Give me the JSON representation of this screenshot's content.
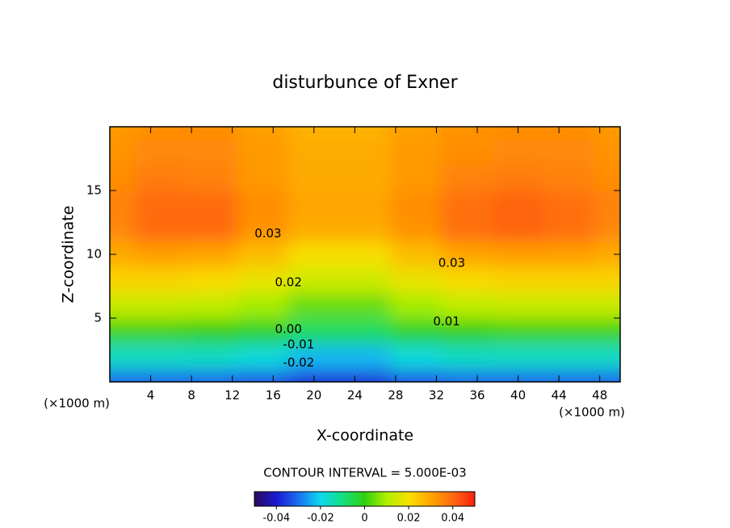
{
  "chart_data": {
    "type": "contour",
    "title": "disturbunce of Exner",
    "x_label": "X-coordinate",
    "y_label": "Z-coordinate",
    "x_unit_left": "(×1000 m)",
    "x_unit_right": "(×1000 m)",
    "contour_interval_text": "CONTOUR INTERVAL = 5.000E-03",
    "xlim": [
      0,
      50
    ],
    "ylim": [
      0,
      20
    ],
    "xticks": [
      4,
      8,
      12,
      16,
      20,
      24,
      28,
      32,
      36,
      40,
      44,
      48
    ],
    "yticks": [
      5,
      10,
      15
    ],
    "x": [
      0,
      5,
      10,
      15,
      20,
      25,
      30,
      35,
      40,
      45,
      50
    ],
    "z_levels": [
      0,
      2,
      4,
      6,
      8,
      10,
      12,
      14,
      16,
      18,
      20
    ],
    "values": [
      [
        -0.031,
        -0.031,
        -0.031,
        -0.033,
        -0.037,
        -0.037,
        -0.033,
        -0.031,
        -0.031,
        -0.031,
        -0.031
      ],
      [
        -0.016,
        -0.016,
        -0.016,
        -0.018,
        -0.023,
        -0.023,
        -0.018,
        -0.016,
        -0.016,
        -0.016,
        -0.016
      ],
      [
        0.001,
        0.001,
        0.0,
        -0.002,
        -0.007,
        -0.007,
        -0.002,
        0.0,
        0.001,
        0.001,
        0.001
      ],
      [
        0.013,
        0.013,
        0.012,
        0.009,
        0.004,
        0.004,
        0.009,
        0.012,
        0.013,
        0.013,
        0.013
      ],
      [
        0.022,
        0.022,
        0.021,
        0.018,
        0.014,
        0.014,
        0.018,
        0.021,
        0.022,
        0.022,
        0.022
      ],
      [
        0.029,
        0.031,
        0.03,
        0.026,
        0.02,
        0.02,
        0.026,
        0.03,
        0.031,
        0.031,
        0.029
      ],
      [
        0.035,
        0.04,
        0.04,
        0.033,
        0.029,
        0.029,
        0.033,
        0.039,
        0.041,
        0.039,
        0.035
      ],
      [
        0.036,
        0.04,
        0.04,
        0.034,
        0.03,
        0.03,
        0.034,
        0.039,
        0.041,
        0.039,
        0.036
      ],
      [
        0.034,
        0.037,
        0.036,
        0.032,
        0.029,
        0.029,
        0.032,
        0.036,
        0.037,
        0.036,
        0.034
      ],
      [
        0.033,
        0.035,
        0.035,
        0.032,
        0.029,
        0.029,
        0.032,
        0.034,
        0.035,
        0.035,
        0.033
      ],
      [
        0.032,
        0.034,
        0.034,
        0.031,
        0.028,
        0.028,
        0.031,
        0.033,
        0.034,
        0.034,
        0.032
      ]
    ],
    "contour_labels": [
      {
        "label": "0.03",
        "x": 15.5,
        "z": 11.6
      },
      {
        "label": "0.03",
        "x": 33.5,
        "z": 9.3
      },
      {
        "label": "0.02",
        "x": 17.5,
        "z": 7.8
      },
      {
        "label": "0.01",
        "x": 33,
        "z": 4.7
      },
      {
        "label": "0.00",
        "x": 17.5,
        "z": 4.1
      },
      {
        "label": "-0.01",
        "x": 18.5,
        "z": 2.9
      },
      {
        "label": "-0.02",
        "x": 18.5,
        "z": 1.5
      }
    ],
    "colorbar": {
      "clim": [
        -0.05,
        0.05
      ],
      "ticks": [
        {
          "value": -0.04,
          "label": "-0.04"
        },
        {
          "value": -0.02,
          "label": "-0.02"
        },
        0,
        0.02,
        0.04
      ],
      "colors": [
        "#2a0a5a",
        "#1a1ad0",
        "#1a70f0",
        "#10d8f0",
        "#10e080",
        "#30d010",
        "#b0f000",
        "#f8e000",
        "#ffa500",
        "#ff6a10",
        "#f82010"
      ]
    }
  }
}
